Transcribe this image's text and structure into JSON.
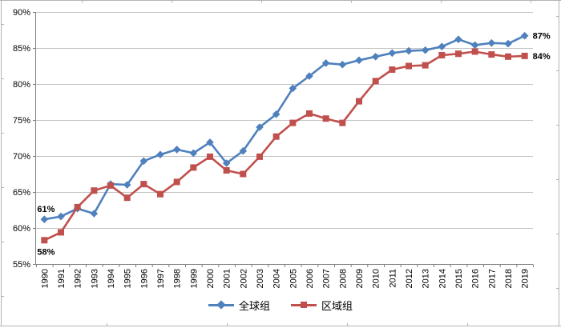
{
  "chart_data": {
    "type": "line",
    "title": "",
    "grid": true,
    "background": "#ffffff",
    "gridline_color": "#c3c3c3",
    "axis_color": "#808080",
    "categories": [
      "1990",
      "1991",
      "1992",
      "1993",
      "1994",
      "1995",
      "1996",
      "1997",
      "1998",
      "1999",
      "2000",
      "2001",
      "2002",
      "2003",
      "2004",
      "2005",
      "2006",
      "2007",
      "2008",
      "2009",
      "2010",
      "2011",
      "2012",
      "2013",
      "2014",
      "2015",
      "2016",
      "2017",
      "2018",
      "2019"
    ],
    "y_axis": {
      "min": 55,
      "max": 90,
      "step": 5,
      "format": "percent",
      "tick_labels": [
        "55%",
        "60%",
        "65%",
        "70%",
        "75%",
        "80%",
        "85%",
        "90%"
      ]
    },
    "series": [
      {
        "name": "全球组",
        "color": "#4f81bd",
        "marker": "diamond",
        "values": [
          61.2,
          61.6,
          62.7,
          62.0,
          66.1,
          66.0,
          69.3,
          70.2,
          70.9,
          70.4,
          71.9,
          69.0,
          70.7,
          74.0,
          75.8,
          79.4,
          81.1,
          82.9,
          82.7,
          83.3,
          83.8,
          84.3,
          84.6,
          84.7,
          85.2,
          86.2,
          85.4,
          85.7,
          85.6,
          86.7
        ]
      },
      {
        "name": "区域组",
        "color": "#c0504d",
        "marker": "square",
        "values": [
          58.3,
          59.4,
          62.9,
          65.2,
          65.9,
          64.2,
          66.1,
          64.7,
          66.4,
          68.4,
          69.9,
          68.0,
          67.5,
          69.9,
          72.7,
          74.6,
          75.9,
          75.2,
          74.6,
          77.6,
          80.4,
          82.0,
          82.5,
          82.6,
          84.0,
          84.2,
          84.5,
          84.1,
          83.8,
          83.9
        ]
      }
    ],
    "point_labels": [
      {
        "series": 0,
        "index": 0,
        "text": "61%",
        "position": "above-left"
      },
      {
        "series": 1,
        "index": 0,
        "text": "58%",
        "position": "below-left"
      },
      {
        "series": 0,
        "index": 29,
        "text": "87%",
        "position": "right"
      },
      {
        "series": 1,
        "index": 29,
        "text": "84%",
        "position": "right"
      }
    ],
    "legend": {
      "position": "bottom",
      "items": [
        "全球组",
        "区域组"
      ]
    }
  }
}
